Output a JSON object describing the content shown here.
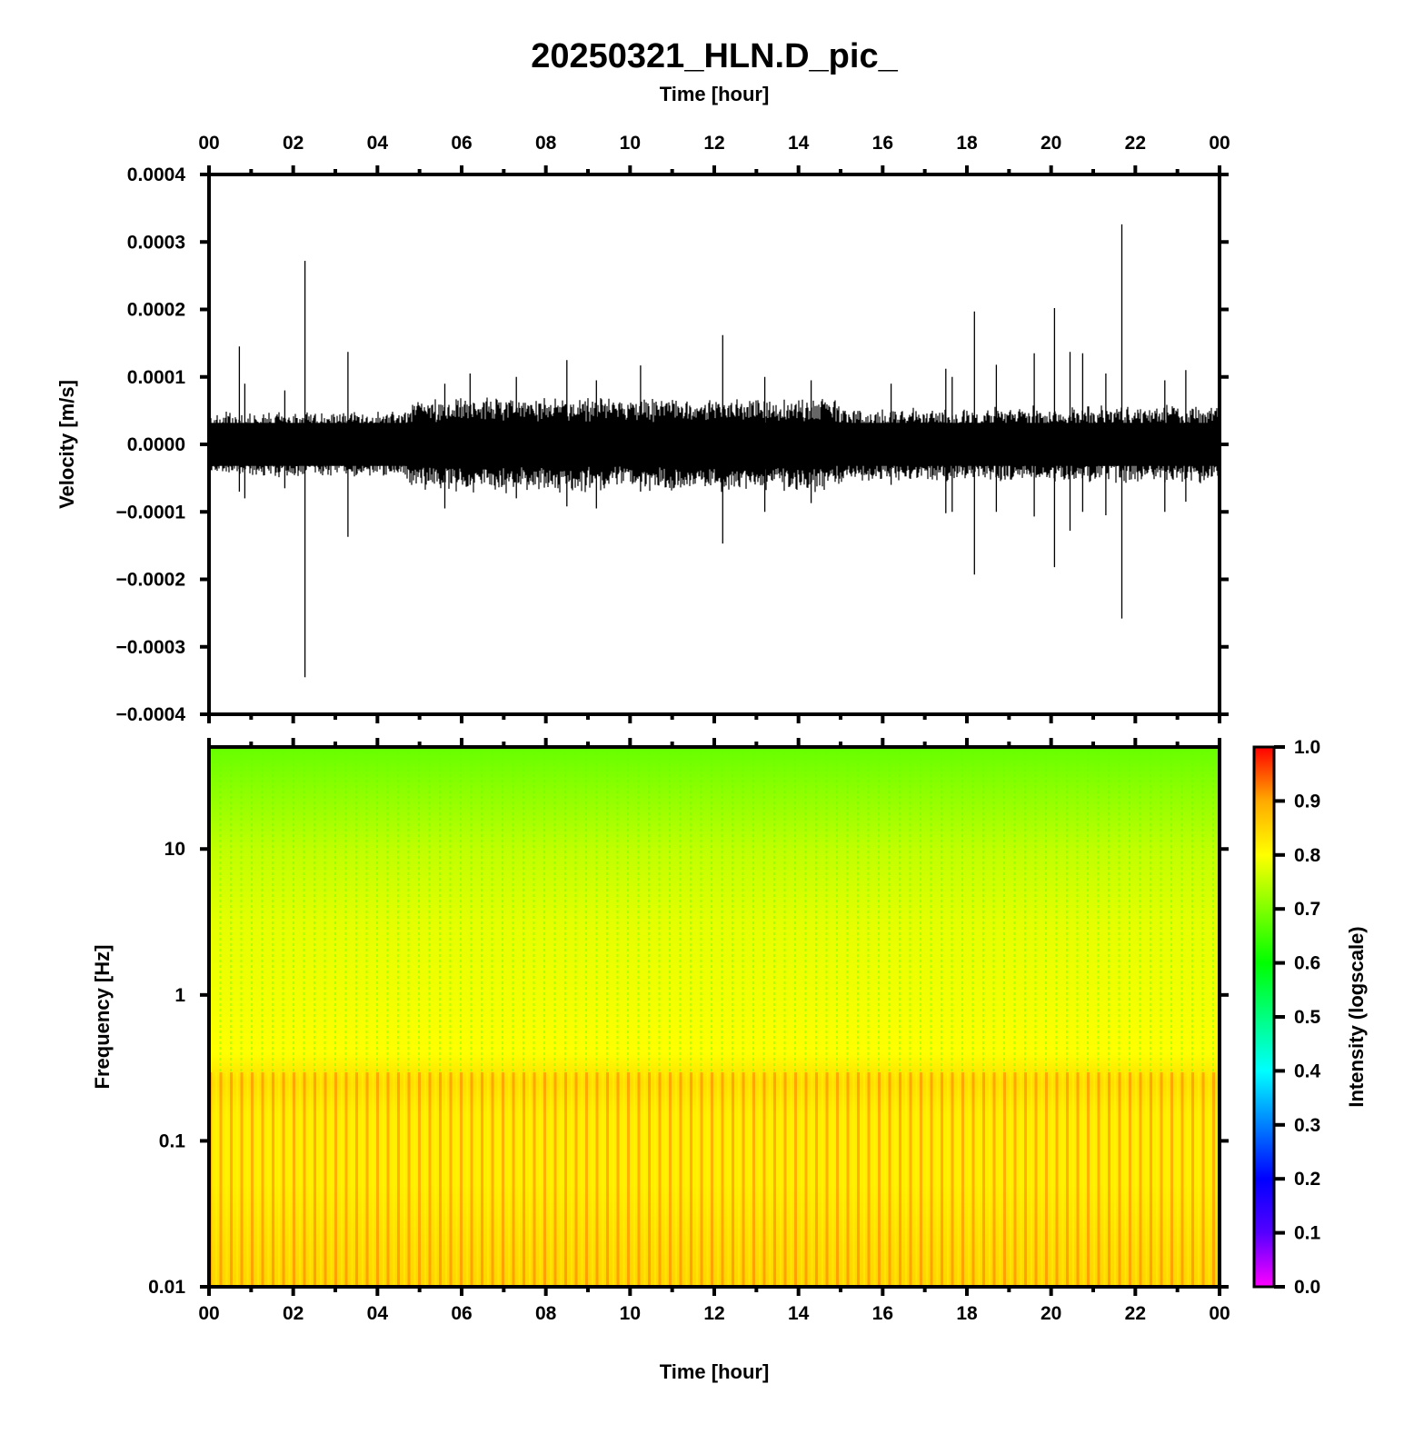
{
  "chart_data": [
    {
      "type": "line",
      "panel": "waveform",
      "title": "20250321_HLN.D_pic_",
      "top_xlabel": "Time [hour]",
      "ylabel": "Velocity [m/s]",
      "x_ticks": [
        "00",
        "02",
        "04",
        "06",
        "08",
        "10",
        "12",
        "14",
        "16",
        "18",
        "20",
        "22",
        "00"
      ],
      "xlim_hours": [
        0,
        24
      ],
      "y_ticks": [
        "0.0004",
        "0.0003",
        "0.0002",
        "0.0001",
        "0.0000",
        "−0.0001",
        "−0.0002",
        "−0.0003",
        "−0.0004"
      ],
      "ylim": [
        -0.0004,
        0.0004
      ],
      "line_color": "#000000",
      "noise_envelope": [
        {
          "hour": 0.0,
          "amplitude": 4e-05
        },
        {
          "hour": 4.5,
          "amplitude": 4e-05
        },
        {
          "hour": 5.0,
          "amplitude": 5.8e-05
        },
        {
          "hour": 14.8,
          "amplitude": 5.8e-05
        },
        {
          "hour": 15.2,
          "amplitude": 4.5e-05
        },
        {
          "hour": 24.0,
          "amplitude": 4.8e-05
        }
      ],
      "spikes": [
        {
          "hour": 0.72,
          "up": 0.000145,
          "down": -7e-05
        },
        {
          "hour": 0.85,
          "up": 9e-05,
          "down": -8e-05
        },
        {
          "hour": 1.8,
          "up": 8e-05,
          "down": -6.5e-05
        },
        {
          "hour": 2.28,
          "up": 0.000272,
          "down": -0.000345
        },
        {
          "hour": 3.3,
          "up": 0.000137,
          "down": -0.000137
        },
        {
          "hour": 5.6,
          "up": 9e-05,
          "down": -9.5e-05
        },
        {
          "hour": 6.2,
          "up": 0.000105,
          "down": -6e-05
        },
        {
          "hour": 7.3,
          "up": 0.0001,
          "down": -8e-05
        },
        {
          "hour": 8.5,
          "up": 0.000125,
          "down": -9.2e-05
        },
        {
          "hour": 9.2,
          "up": 9.5e-05,
          "down": -9.5e-05
        },
        {
          "hour": 10.25,
          "up": 0.000117,
          "down": -7e-05
        },
        {
          "hour": 12.2,
          "up": 0.000162,
          "down": -0.000147
        },
        {
          "hour": 13.2,
          "up": 0.0001,
          "down": -0.0001
        },
        {
          "hour": 14.3,
          "up": 9.5e-05,
          "down": -8.7e-05
        },
        {
          "hour": 16.2,
          "up": 9e-05,
          "down": -6e-05
        },
        {
          "hour": 17.5,
          "up": 0.000112,
          "down": -0.000102
        },
        {
          "hour": 17.65,
          "up": 0.0001,
          "down": -0.0001
        },
        {
          "hour": 18.18,
          "up": 0.000197,
          "down": -0.000193
        },
        {
          "hour": 18.7,
          "up": 0.000118,
          "down": -0.0001
        },
        {
          "hour": 19.6,
          "up": 0.000135,
          "down": -0.000107
        },
        {
          "hour": 20.08,
          "up": 0.000202,
          "down": -0.000182
        },
        {
          "hour": 20.45,
          "up": 0.000137,
          "down": -0.000128
        },
        {
          "hour": 20.75,
          "up": 0.000135,
          "down": -0.0001
        },
        {
          "hour": 21.3,
          "up": 0.000105,
          "down": -0.000105
        },
        {
          "hour": 21.68,
          "up": 0.000326,
          "down": -0.000258
        },
        {
          "hour": 22.7,
          "up": 9.5e-05,
          "down": -0.0001
        },
        {
          "hour": 23.2,
          "up": 0.00011,
          "down": -8.5e-05
        }
      ]
    },
    {
      "type": "heatmap",
      "panel": "spectrogram",
      "xlabel": "Time [hour]",
      "ylabel": "Frequency [Hz]",
      "x_ticks": [
        "00",
        "02",
        "04",
        "06",
        "08",
        "10",
        "12",
        "14",
        "16",
        "18",
        "20",
        "22",
        "00"
      ],
      "xlim_hours": [
        0,
        24
      ],
      "y_scale": "log",
      "ylim_hz": [
        0.01,
        50
      ],
      "y_ticks": [
        "10",
        "1",
        "0.1",
        "0.01"
      ],
      "colorbar": {
        "label": "Intensity (logscale)",
        "range": [
          0.0,
          1.0
        ],
        "ticks": [
          "1.0",
          "0.9",
          "0.8",
          "0.7",
          "0.6",
          "0.5",
          "0.4",
          "0.3",
          "0.2",
          "0.1",
          "0.0"
        ],
        "colormap": [
          "#ff00ff",
          "#5500ff",
          "#0000ff",
          "#0080ff",
          "#00ffff",
          "#00ff80",
          "#00ff00",
          "#80ff00",
          "#ffff00",
          "#ffaa00",
          "#ff0000"
        ]
      },
      "intensity_profile": [
        {
          "freq_hz": 50,
          "intensity": 0.68
        },
        {
          "freq_hz": 20,
          "intensity": 0.72
        },
        {
          "freq_hz": 10,
          "intensity": 0.75
        },
        {
          "freq_hz": 3,
          "intensity": 0.78
        },
        {
          "freq_hz": 1,
          "intensity": 0.79
        },
        {
          "freq_hz": 0.4,
          "intensity": 0.8
        },
        {
          "freq_hz": 0.25,
          "intensity": 0.84
        },
        {
          "freq_hz": 0.15,
          "intensity": 0.82
        },
        {
          "freq_hz": 0.05,
          "intensity": 0.82
        },
        {
          "freq_hz": 0.02,
          "intensity": 0.84
        },
        {
          "freq_hz": 0.01,
          "intensity": 0.85
        }
      ],
      "stripe_count": 96
    }
  ]
}
